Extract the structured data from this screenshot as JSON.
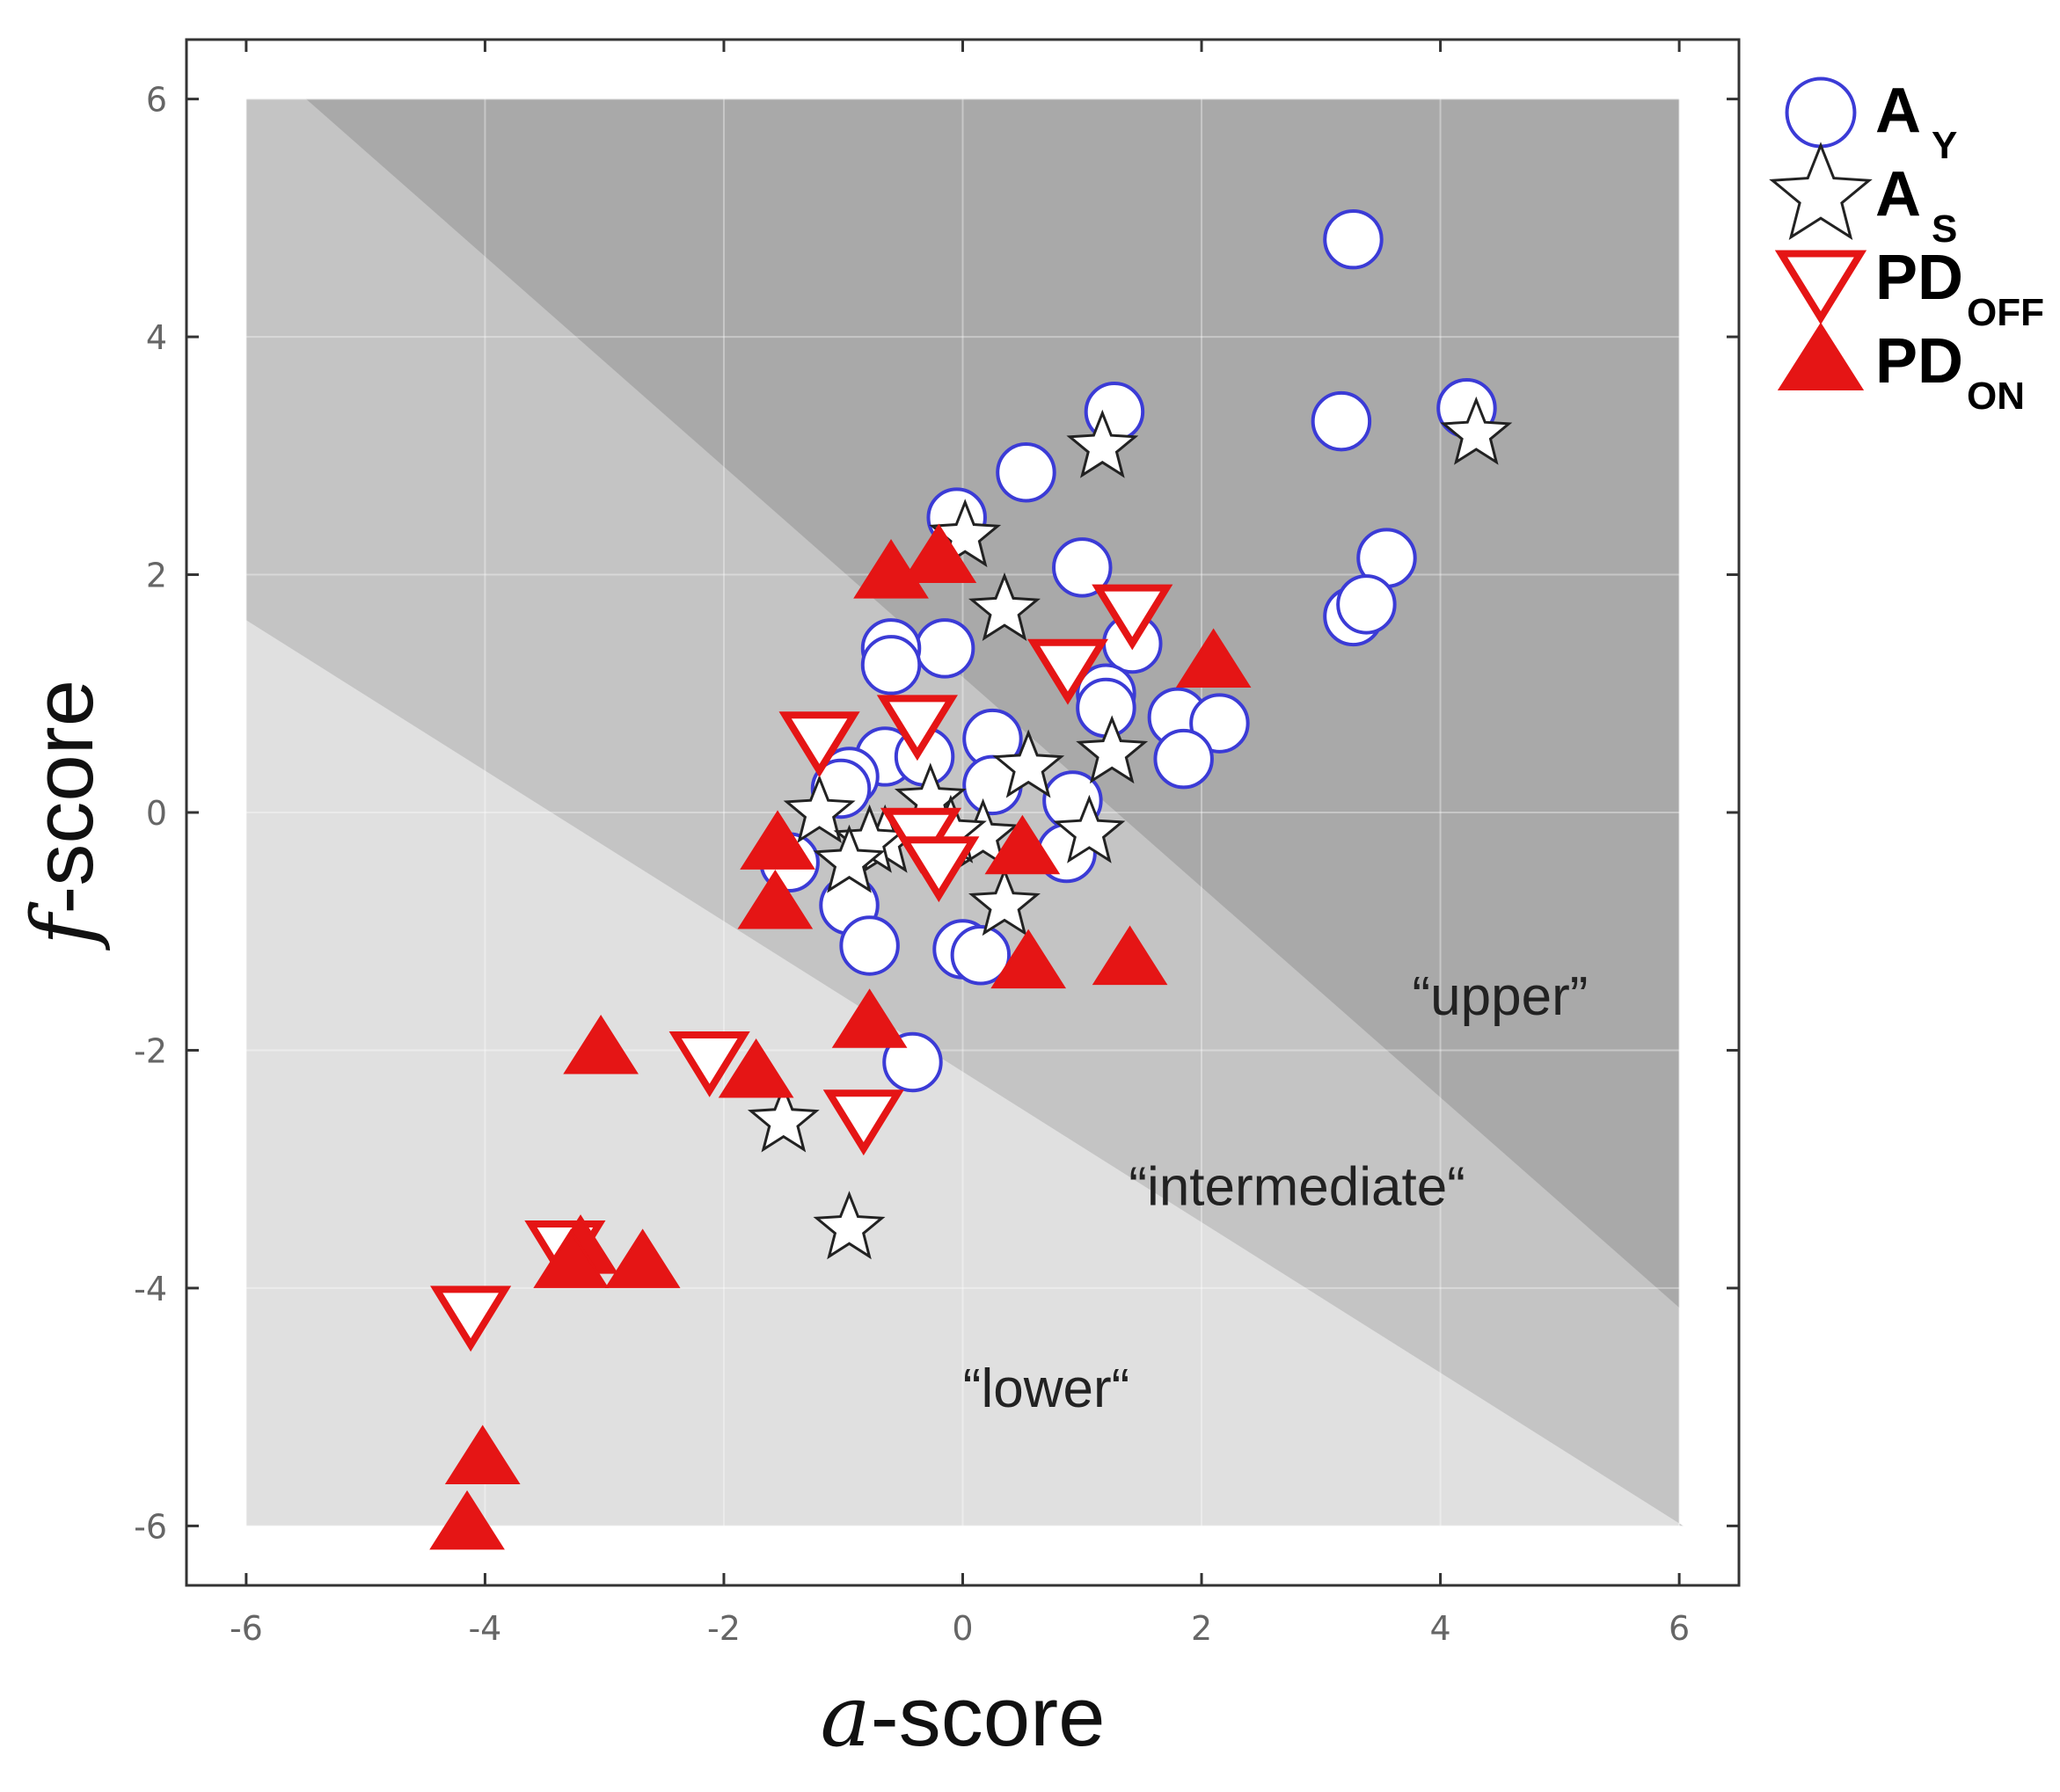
{
  "chart_data": {
    "type": "scatter",
    "title": "",
    "xlabel": {
      "italic": "a",
      "rest": "-score"
    },
    "ylabel": {
      "italic": "f",
      "rest": "-score"
    },
    "xlim": [
      -6.5,
      6.5
    ],
    "ylim": [
      -6.5,
      6.5
    ],
    "xticks": [
      -6,
      -4,
      -2,
      0,
      2,
      4,
      6
    ],
    "yticks": [
      -6,
      -4,
      -2,
      0,
      2,
      4,
      6
    ],
    "grid": true,
    "regions": [
      {
        "name": "lower",
        "label": "“lower“",
        "color": "#e0e0e0",
        "label_at": [
          0.7,
          -5.0
        ]
      },
      {
        "name": "intermediate",
        "label": "“intermediate“",
        "color": "#c4c4c4",
        "label_at": [
          2.8,
          -3.3
        ]
      },
      {
        "name": "upper",
        "label": "“upper”",
        "color": "#a9a9a9",
        "label_at": [
          4.5,
          -1.7
        ]
      }
    ],
    "region_boundaries": {
      "domain_x": [
        -6,
        6
      ],
      "domain_y": [
        -6,
        6
      ],
      "lower_intermediate_line": {
        "slope": -0.633,
        "intercept": -2.18
      },
      "intermediate_upper_line": {
        "slope": -0.884,
        "intercept": 1.14
      }
    },
    "legend_position": "right",
    "series": [
      {
        "name": "A_Y",
        "label": "A",
        "sub": "Y",
        "marker": "circle",
        "color": "#3b3bd6",
        "fill": "#ffffff",
        "points": [
          [
            3.27,
            4.82
          ],
          [
            1.27,
            3.37
          ],
          [
            4.22,
            3.4
          ],
          [
            3.17,
            3.29
          ],
          [
            0.53,
            2.86
          ],
          [
            -0.05,
            2.48
          ],
          [
            1.0,
            2.06
          ],
          [
            3.55,
            2.14
          ],
          [
            3.27,
            1.65
          ],
          [
            3.38,
            1.75
          ],
          [
            1.42,
            1.42
          ],
          [
            -0.15,
            1.38
          ],
          [
            -0.6,
            1.38
          ],
          [
            -0.6,
            1.24
          ],
          [
            1.2,
            1.0
          ],
          [
            1.2,
            0.88
          ],
          [
            1.8,
            0.8
          ],
          [
            2.15,
            0.75
          ],
          [
            1.85,
            0.45
          ],
          [
            0.25,
            0.62
          ],
          [
            -0.65,
            0.47
          ],
          [
            -0.32,
            0.47
          ],
          [
            -0.95,
            0.3
          ],
          [
            -1.02,
            0.2
          ],
          [
            0.25,
            0.23
          ],
          [
            0.92,
            0.1
          ],
          [
            0.87,
            -0.34
          ],
          [
            -1.45,
            -0.42
          ],
          [
            -0.95,
            -0.78
          ],
          [
            -0.78,
            -1.12
          ],
          [
            0.0,
            -1.15
          ],
          [
            0.15,
            -1.2
          ],
          [
            -0.42,
            -2.1
          ]
        ]
      },
      {
        "name": "A_S",
        "label": "A",
        "sub": "S",
        "marker": "star",
        "color": "#222222",
        "fill": "#ffffff",
        "points": [
          [
            1.17,
            3.07
          ],
          [
            4.3,
            3.18
          ],
          [
            0.02,
            2.32
          ],
          [
            0.35,
            1.7
          ],
          [
            0.55,
            0.38
          ],
          [
            1.25,
            0.5
          ],
          [
            -0.27,
            0.1
          ],
          [
            -1.2,
            0.0
          ],
          [
            -0.65,
            -0.25
          ],
          [
            -0.78,
            -0.25
          ],
          [
            -0.95,
            -0.42
          ],
          [
            0.17,
            -0.2
          ],
          [
            1.06,
            -0.17
          ],
          [
            -0.1,
            -0.17
          ],
          [
            0.35,
            -0.78
          ],
          [
            -1.5,
            -2.6
          ],
          [
            -0.95,
            -3.5
          ]
        ]
      },
      {
        "name": "PD_OFF",
        "label": "PD",
        "sub": "OFF",
        "marker": "triangle-down",
        "color": "#e51515",
        "fill": "#ffffff",
        "points": [
          [
            1.42,
            1.7
          ],
          [
            0.88,
            1.24
          ],
          [
            -1.2,
            0.63
          ],
          [
            -0.38,
            0.77
          ],
          [
            -0.35,
            -0.18
          ],
          [
            -0.2,
            -0.42
          ],
          [
            -2.12,
            -2.06
          ],
          [
            -0.83,
            -2.55
          ],
          [
            -3.33,
            -3.65
          ],
          [
            -4.12,
            -4.2
          ]
        ]
      },
      {
        "name": "PD_ON",
        "label": "PD",
        "sub": "ON",
        "marker": "triangle-up",
        "color": "#e51515",
        "fill": "#e51515",
        "points": [
          [
            -0.6,
            2.0
          ],
          [
            -0.2,
            2.13
          ],
          [
            2.1,
            1.25
          ],
          [
            -1.55,
            -0.28
          ],
          [
            0.5,
            -0.32
          ],
          [
            -1.57,
            -0.78
          ],
          [
            0.55,
            -1.28
          ],
          [
            1.4,
            -1.25
          ],
          [
            -0.78,
            -1.78
          ],
          [
            -3.03,
            -2.0
          ],
          [
            -1.73,
            -2.2
          ],
          [
            -3.2,
            -3.68
          ],
          [
            -3.28,
            -3.8
          ],
          [
            -2.68,
            -3.8
          ],
          [
            -4.02,
            -5.45
          ],
          [
            -4.15,
            -6.0
          ]
        ]
      }
    ]
  }
}
